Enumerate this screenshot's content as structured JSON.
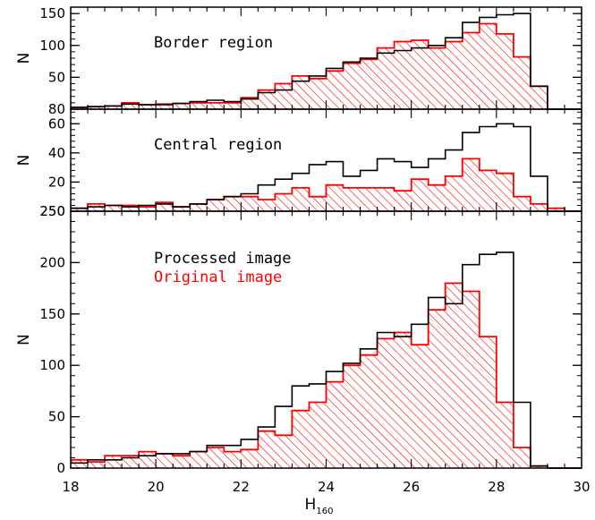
{
  "colors": {
    "processed": "#000000",
    "original": "#ff0000"
  },
  "chart_data": [
    {
      "type": "histogram",
      "label": "Border region",
      "ylabel": "N",
      "ylim": [
        0,
        160
      ],
      "yticks": [
        50,
        100,
        150
      ],
      "y_min_label": "80",
      "bin_edges": [
        18,
        18.4,
        18.8,
        19.2,
        19.6,
        20.0,
        20.4,
        20.8,
        21.2,
        21.6,
        22.0,
        22.4,
        22.8,
        23.2,
        23.6,
        24.0,
        24.4,
        24.8,
        25.2,
        25.6,
        26.0,
        26.4,
        26.8,
        27.2,
        27.6,
        28.0,
        28.4,
        28.8,
        29.2,
        29.6,
        30.0
      ],
      "series": [
        {
          "key": "processed",
          "values": [
            3,
            4,
            5,
            8,
            7,
            7,
            9,
            12,
            14,
            12,
            16,
            26,
            30,
            44,
            52,
            64,
            74,
            80,
            88,
            92,
            96,
            100,
            112,
            136,
            144,
            148,
            150,
            36,
            0,
            0
          ]
        },
        {
          "key": "original",
          "values": [
            3,
            4,
            5,
            10,
            7,
            8,
            9,
            10,
            10,
            10,
            18,
            30,
            40,
            52,
            48,
            60,
            72,
            78,
            96,
            106,
            108,
            96,
            106,
            120,
            134,
            118,
            82,
            36,
            0,
            0
          ]
        }
      ]
    },
    {
      "type": "histogram",
      "label": "Central region",
      "ylabel": "N",
      "ylim": [
        0,
        70
      ],
      "yticks": [
        20,
        40,
        60
      ],
      "y_min_label": "250",
      "bin_edges": [
        18,
        18.4,
        18.8,
        19.2,
        19.6,
        20.0,
        20.4,
        20.8,
        21.2,
        21.6,
        22.0,
        22.4,
        22.8,
        23.2,
        23.6,
        24.0,
        24.4,
        24.8,
        25.2,
        25.6,
        26.0,
        26.4,
        26.8,
        27.2,
        27.6,
        28.0,
        28.4,
        28.8,
        29.2,
        29.6,
        30.0
      ],
      "series": [
        {
          "key": "processed",
          "values": [
            2,
            3,
            4,
            3,
            4,
            5,
            3,
            5,
            8,
            10,
            12,
            18,
            22,
            26,
            32,
            34,
            24,
            28,
            36,
            34,
            30,
            36,
            42,
            54,
            58,
            60,
            58,
            24,
            0,
            0
          ]
        },
        {
          "key": "original",
          "values": [
            2,
            5,
            4,
            4,
            3,
            6,
            3,
            5,
            8,
            10,
            10,
            8,
            12,
            16,
            10,
            18,
            16,
            16,
            16,
            14,
            22,
            18,
            24,
            36,
            28,
            26,
            10,
            5,
            2,
            0
          ]
        }
      ]
    },
    {
      "type": "histogram",
      "label": "",
      "ylabel": "N",
      "xlabel": "H",
      "xlabel_sub": "160",
      "xlim": [
        18,
        30
      ],
      "xticks": [
        18,
        20,
        22,
        24,
        26,
        28,
        30
      ],
      "ylim": [
        0,
        250
      ],
      "yticks": [
        0,
        50,
        100,
        150,
        200,
        250
      ],
      "legend": [
        {
          "key": "processed",
          "name": "Processed image"
        },
        {
          "key": "original",
          "name": "Original image"
        }
      ],
      "bin_edges": [
        18,
        18.4,
        18.8,
        19.2,
        19.6,
        20.0,
        20.4,
        20.8,
        21.2,
        21.6,
        22.0,
        22.4,
        22.8,
        23.2,
        23.6,
        24.0,
        24.4,
        24.8,
        25.2,
        25.6,
        26.0,
        26.4,
        26.8,
        27.2,
        27.6,
        28.0,
        28.4,
        28.8,
        29.2,
        29.6,
        30.0
      ],
      "series": [
        {
          "key": "processed",
          "values": [
            5,
            8,
            8,
            10,
            12,
            14,
            14,
            16,
            22,
            22,
            28,
            40,
            60,
            80,
            82,
            94,
            102,
            116,
            132,
            128,
            140,
            166,
            160,
            198,
            208,
            210,
            64,
            2,
            0,
            0
          ]
        },
        {
          "key": "original",
          "values": [
            8,
            6,
            12,
            12,
            16,
            14,
            12,
            16,
            20,
            16,
            18,
            36,
            32,
            56,
            64,
            84,
            100,
            110,
            126,
            132,
            120,
            154,
            180,
            172,
            128,
            64,
            20,
            2,
            0,
            0
          ]
        }
      ]
    }
  ]
}
